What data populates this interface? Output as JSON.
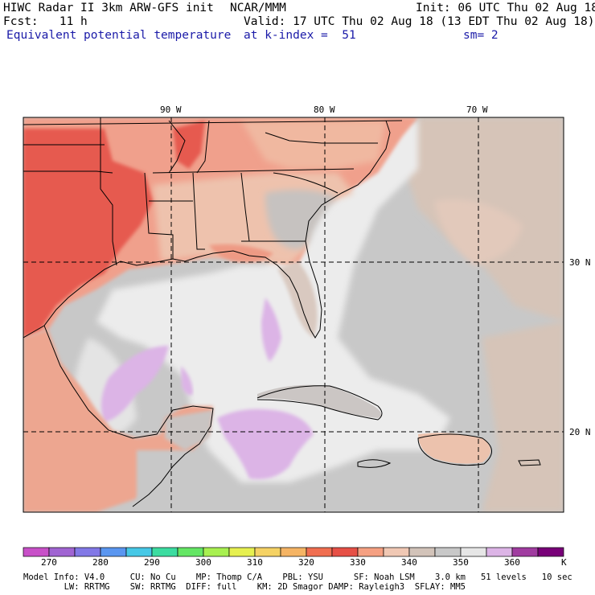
{
  "header": {
    "line1_left": "HIWC Radar II 3km ARW-GFS init",
    "line1_mid": "NCAR/MMM",
    "line1_right": "Init: 06 UTC Thu 02 Aug 18",
    "line2_left": "Fcst:   11 h",
    "line2_right": "Valid: 17 UTC Thu 02 Aug 18 (13 EDT Thu 02 Aug 18)",
    "line3_left": "Equivalent potential temperature",
    "line3_mid": "at k-index =  51",
    "line3_right": "sm= 2"
  },
  "axes": {
    "lon_labels": [
      "90 W",
      "80 W",
      "70 W"
    ],
    "lat_labels": [
      "30 N",
      "20 N"
    ]
  },
  "colorbar": {
    "unit": "K",
    "labels": [
      "270",
      "280",
      "290",
      "300",
      "310",
      "320",
      "330",
      "340",
      "350",
      "360"
    ],
    "colors": [
      "#c850c8",
      "#a064d2",
      "#8278e6",
      "#5a96f0",
      "#46c8e6",
      "#3cdca0",
      "#64e664",
      "#a8f050",
      "#e6f050",
      "#f5d264",
      "#f5b464",
      "#f06e50",
      "#e65046",
      "#f5a082",
      "#f0c8b4",
      "#d2c3b9",
      "#c8c8c8",
      "#e6e6e6",
      "#dcb4e6",
      "#a03ca0",
      "#780078"
    ],
    "boundaries": [
      "265",
      "270",
      "275",
      "280",
      "285",
      "290",
      "295",
      "300",
      "305",
      "310",
      "315",
      "320",
      "325",
      "330",
      "335",
      "340",
      "345",
      "350",
      "355",
      "360",
      "365",
      "370"
    ]
  },
  "footer": {
    "line1": "Model Info: V4.0     CU: No Cu    MP: Thomp C/A    PBL: YSU      SF: Noah LSM    3.0 km   51 levels   10 sec",
    "line2": "        LW: RRTMG    SW: RRTMG  DIFF: full    KM: 2D Smagor DAMP: Rayleigh3  SFLAY: MM5"
  },
  "colors": {
    "header_blue": "#1a1aa8",
    "ocean_gray": "#c8c8c8",
    "warm_land": "#f0a08c",
    "hot_land": "#e65a50",
    "cool_white": "#ececec",
    "purple_patch": "#dcb4e6",
    "tan": "#d6c4b8"
  }
}
